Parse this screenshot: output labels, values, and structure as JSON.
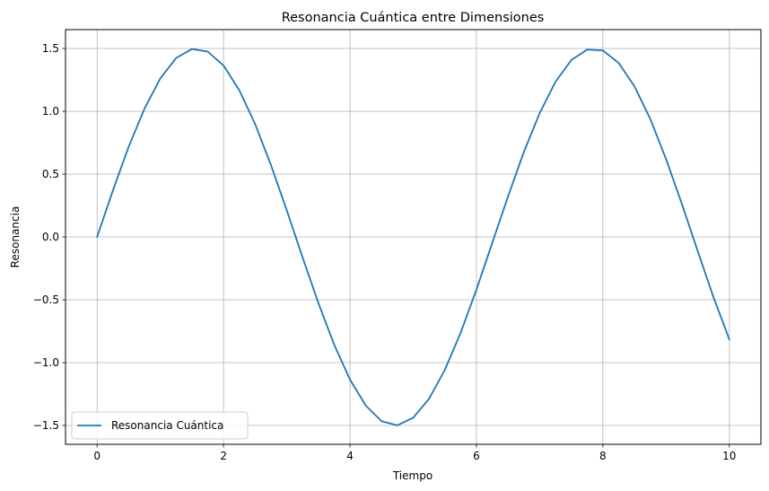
{
  "chart_data": {
    "type": "line",
    "title": "Resonancia Cuántica entre Dimensiones",
    "xlabel": "Tiempo",
    "ylabel": "Resonancia",
    "xlim": [
      -0.5,
      10.5
    ],
    "ylim": [
      -1.65,
      1.65
    ],
    "xticks": [
      0,
      2,
      4,
      6,
      8,
      10
    ],
    "yticks": [
      -1.5,
      -1.0,
      -0.5,
      0.0,
      0.5,
      1.0,
      1.5
    ],
    "xtick_labels": [
      "0",
      "2",
      "4",
      "6",
      "8",
      "10"
    ],
    "ytick_labels": [
      "−1.5",
      "−1.0",
      "−0.5",
      "0.0",
      "0.5",
      "1.0",
      "1.5"
    ],
    "grid": true,
    "legend_position": "lower-left",
    "series": [
      {
        "name": "Resonancia Cuántica",
        "color": "#1f77b4",
        "x": [
          0,
          0.25,
          0.5,
          0.75,
          1,
          1.25,
          1.5,
          1.75,
          2,
          2.25,
          2.5,
          2.75,
          3,
          3.25,
          3.5,
          3.75,
          4,
          4.25,
          4.5,
          4.75,
          5,
          5.25,
          5.5,
          5.75,
          6,
          6.25,
          6.5,
          6.75,
          7,
          7.25,
          7.5,
          7.75,
          8,
          8.25,
          8.5,
          8.75,
          9,
          9.25,
          9.5,
          9.75,
          10
        ],
        "y": [
          0.0,
          0.371,
          0.719,
          1.022,
          1.262,
          1.424,
          1.496,
          1.475,
          1.364,
          1.167,
          0.898,
          0.572,
          0.212,
          -0.162,
          -0.526,
          -0.857,
          -1.135,
          -1.342,
          -1.466,
          -1.499,
          -1.438,
          -1.288,
          -1.058,
          -0.763,
          -0.419,
          -0.048,
          0.323,
          0.676,
          0.985,
          1.235,
          1.407,
          1.491,
          1.484,
          1.385,
          1.198,
          0.939,
          0.619,
          0.262,
          -0.112,
          -0.48,
          -0.816
        ]
      }
    ]
  }
}
